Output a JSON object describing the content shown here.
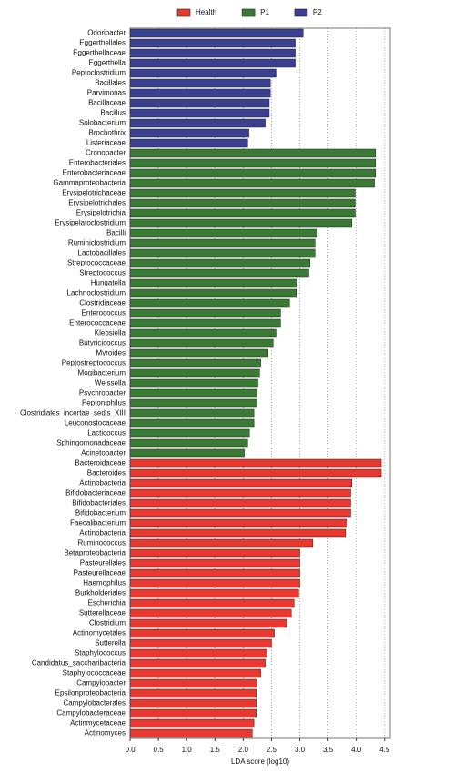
{
  "chart_data": {
    "type": "bar",
    "orientation": "horizontal",
    "xlabel": "LDA score (log10)",
    "xlim": [
      0,
      4.6
    ],
    "xticks": [
      {
        "value": 0,
        "label": "0.0"
      },
      0.5,
      {
        "value": 1,
        "label": "1.0"
      },
      1.5,
      {
        "value": 2,
        "label": "2.0"
      },
      2.5,
      {
        "value": 3,
        "label": "3.0"
      },
      3.5,
      {
        "value": 4,
        "label": "4.0"
      },
      4.5
    ],
    "grid": true,
    "series": [
      {
        "name": "Health",
        "color": "#e8382f",
        "categories": [
          "Bacteroidaceae",
          "Bacteroides",
          "Actinobacteria",
          "Bifidobacteriaceae",
          "Bifidobacteriales",
          "Bifidobacterium",
          "Faecalibacterium",
          "Actinobacteria",
          "Ruminococcus",
          "Betaproteobacteria",
          "Pasteurellales",
          "Pasteurellaceae",
          "Haemophilus",
          "Burkholderiales",
          "Escherichia",
          "Sutterellaceae",
          "Clostridium",
          "Actinomycetales",
          "Sutterella",
          "Staphylococcus",
          "Candidatus_saccharibacteria",
          "Staphylococcaceae",
          "Campylobacter",
          "Epsilonproteobacteria",
          "Campylobacterales",
          "Campylobacteraceae",
          "Actinmycetaceae",
          "Actinomyces"
        ],
        "values": [
          4.44,
          4.44,
          3.92,
          3.9,
          3.9,
          3.9,
          3.84,
          3.81,
          3.23,
          3.0,
          3.0,
          3.0,
          3.0,
          2.98,
          2.9,
          2.85,
          2.77,
          2.55,
          2.5,
          2.42,
          2.39,
          2.31,
          2.24,
          2.23,
          2.23,
          2.23,
          2.19,
          2.16
        ]
      },
      {
        "name": "P1",
        "color": "#3b7a35",
        "categories": [
          "Cronobacter",
          "Enterobacteriales",
          "Enterobacteriaceae",
          "Gammaproteobacteria",
          "Erysipelotrichaceae",
          "Erysipelotrichales",
          "Erysipelotrichia",
          "Erysipelatoclostridium",
          "Bacilli",
          "Ruminiclostridium",
          "Lactobacillales",
          "Streptococcaceae",
          "Streptococcus",
          "Hungatella",
          "Lachnoclostridium",
          "Clostridiaceae",
          "Enterococcus",
          "Enterococcaceae",
          "Klebsiella",
          "Butyricicoccus",
          "Myroides",
          "Peptostreptococcus",
          "Mogibacterium",
          "Weissella",
          "Psychrobacter",
          "Peptoniphilus",
          "Clostridiales_incertae_sedis_XIII",
          "Leuconostocaceae",
          "Lacticoccus",
          "Sphingomonadaceae",
          "Acinetobacter"
        ],
        "values": [
          4.34,
          4.34,
          4.34,
          4.32,
          3.98,
          3.98,
          3.98,
          3.92,
          3.31,
          3.27,
          3.27,
          3.18,
          3.16,
          2.95,
          2.94,
          2.82,
          2.66,
          2.66,
          2.58,
          2.53,
          2.44,
          2.31,
          2.29,
          2.26,
          2.24,
          2.24,
          2.19,
          2.19,
          2.11,
          2.08,
          2.02
        ]
      },
      {
        "name": "P2",
        "color": "#3b3f8f",
        "categories": [
          "Odoribacter",
          "Eggerthellales",
          "Eggerthellaceae",
          "Eggerthella",
          "Peptoclostridium",
          "Bacillales",
          "Parvimonas",
          "Bacillaceae",
          "Bacillus",
          "Solobacterium",
          "Brochothrix",
          "Listeriaceae"
        ],
        "values": [
          3.06,
          2.92,
          2.92,
          2.92,
          2.58,
          2.48,
          2.48,
          2.46,
          2.46,
          2.39,
          2.1,
          2.08
        ]
      }
    ]
  }
}
